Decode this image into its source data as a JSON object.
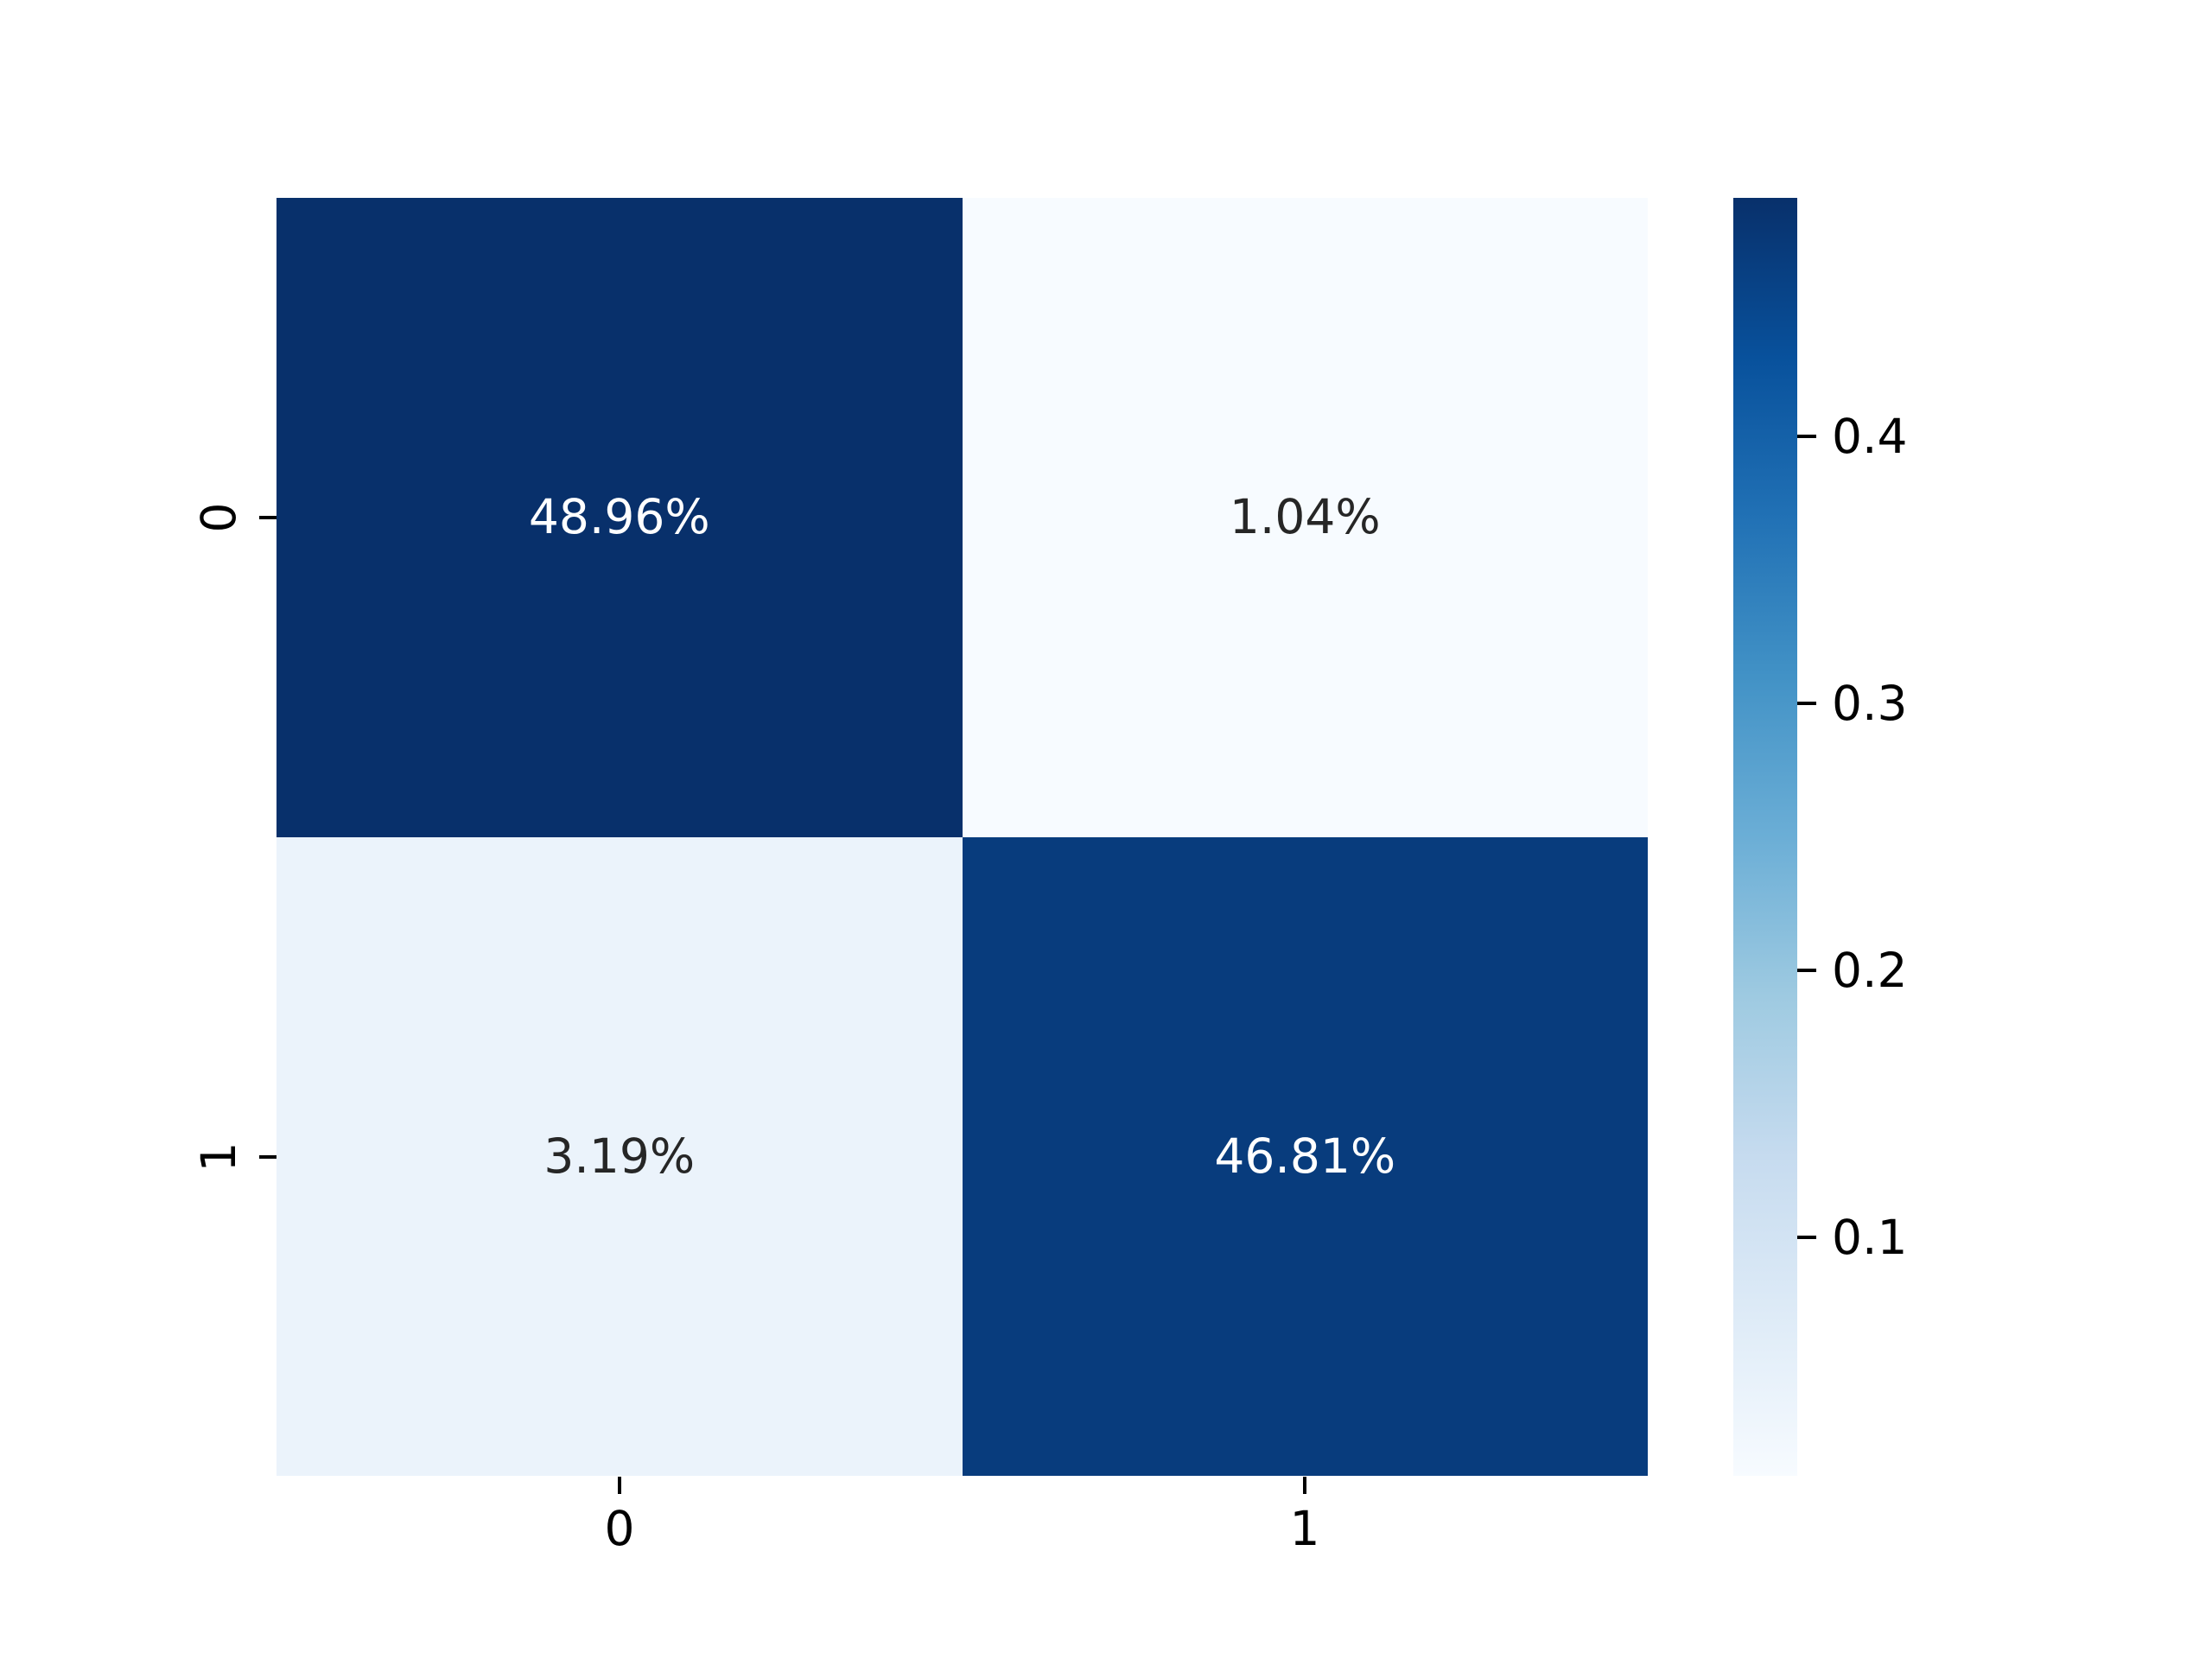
{
  "chart_data": {
    "type": "heatmap",
    "subtype": "confusion-matrix",
    "title": "",
    "xlabel": "",
    "ylabel": "",
    "x_tick_labels": [
      "0",
      "1"
    ],
    "y_tick_labels": [
      "0",
      "1"
    ],
    "grid": false,
    "categories_x": [
      "0",
      "1"
    ],
    "categories_y": [
      "0",
      "1"
    ],
    "matrix_percent": [
      [
        48.96,
        1.04
      ],
      [
        3.19,
        46.81
      ]
    ],
    "cells": [
      {
        "row": "0",
        "col": "0",
        "label": "48.96%",
        "value": 0.4896,
        "bg": "#08306b",
        "text_color": "#ffffff"
      },
      {
        "row": "0",
        "col": "1",
        "label": "1.04%",
        "value": 0.0104,
        "bg": "#f7fbff",
        "text_color": "#262626"
      },
      {
        "row": "1",
        "col": "0",
        "label": "3.19%",
        "value": 0.0319,
        "bg": "#ebf3fb",
        "text_color": "#262626"
      },
      {
        "row": "1",
        "col": "1",
        "label": "46.81%",
        "value": 0.4681,
        "bg": "#083c7d",
        "text_color": "#ffffff"
      }
    ],
    "colorbar": {
      "position": "right",
      "orientation": "vertical",
      "vmin": 0.0104,
      "vmax": 0.4896,
      "colormap": "Blues",
      "tick_labels": [
        "0.4",
        "0.3",
        "0.2",
        "0.1"
      ],
      "tick_values": [
        0.4,
        0.3,
        0.2,
        0.1
      ],
      "gradient_stops_top_to_bottom": [
        "#08306b",
        "#08519c",
        "#2171b5",
        "#4292c6",
        "#6baed6",
        "#9ecae1",
        "#c6dbef",
        "#deebf7",
        "#f7fbff"
      ]
    },
    "colors": {
      "background": "#ffffff",
      "tick_color": "#000000",
      "annotation_light": "#ffffff",
      "annotation_dark": "#262626"
    }
  }
}
